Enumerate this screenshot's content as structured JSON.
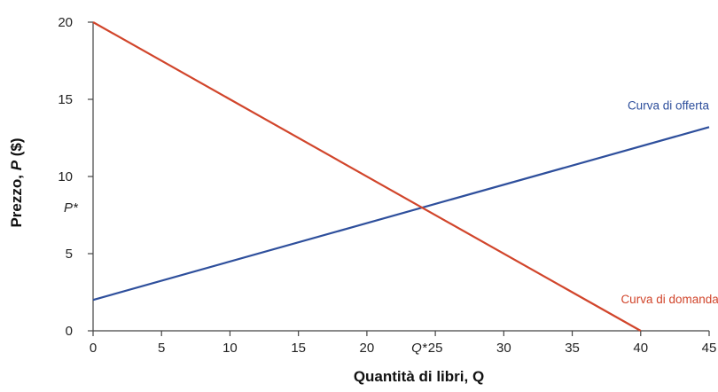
{
  "chart_data": {
    "type": "line",
    "xlabel": "Quantità di libri, Q",
    "ylabel_prefix": "Prezzo, ",
    "ylabel_var": "P",
    "ylabel_suffix": " ($)",
    "xlim": [
      0,
      45
    ],
    "ylim": [
      0,
      20
    ],
    "x_ticks": [
      0,
      5,
      10,
      15,
      20,
      25,
      30,
      35,
      40,
      45
    ],
    "y_ticks": [
      0,
      5,
      10,
      15,
      20
    ],
    "grid": false,
    "series": [
      {
        "name": "Curva di offerta",
        "color": "#2e4f9c",
        "x": [
          0,
          45
        ],
        "y": [
          2,
          13.2
        ]
      },
      {
        "name": "Curva di domanda",
        "color": "#d1452b",
        "x": [
          0,
          40
        ],
        "y": [
          20,
          0
        ]
      }
    ],
    "annotations": {
      "p_star_label": "P*",
      "p_star_value": 8,
      "q_star_label": "Q*",
      "q_star_value": 24
    }
  }
}
